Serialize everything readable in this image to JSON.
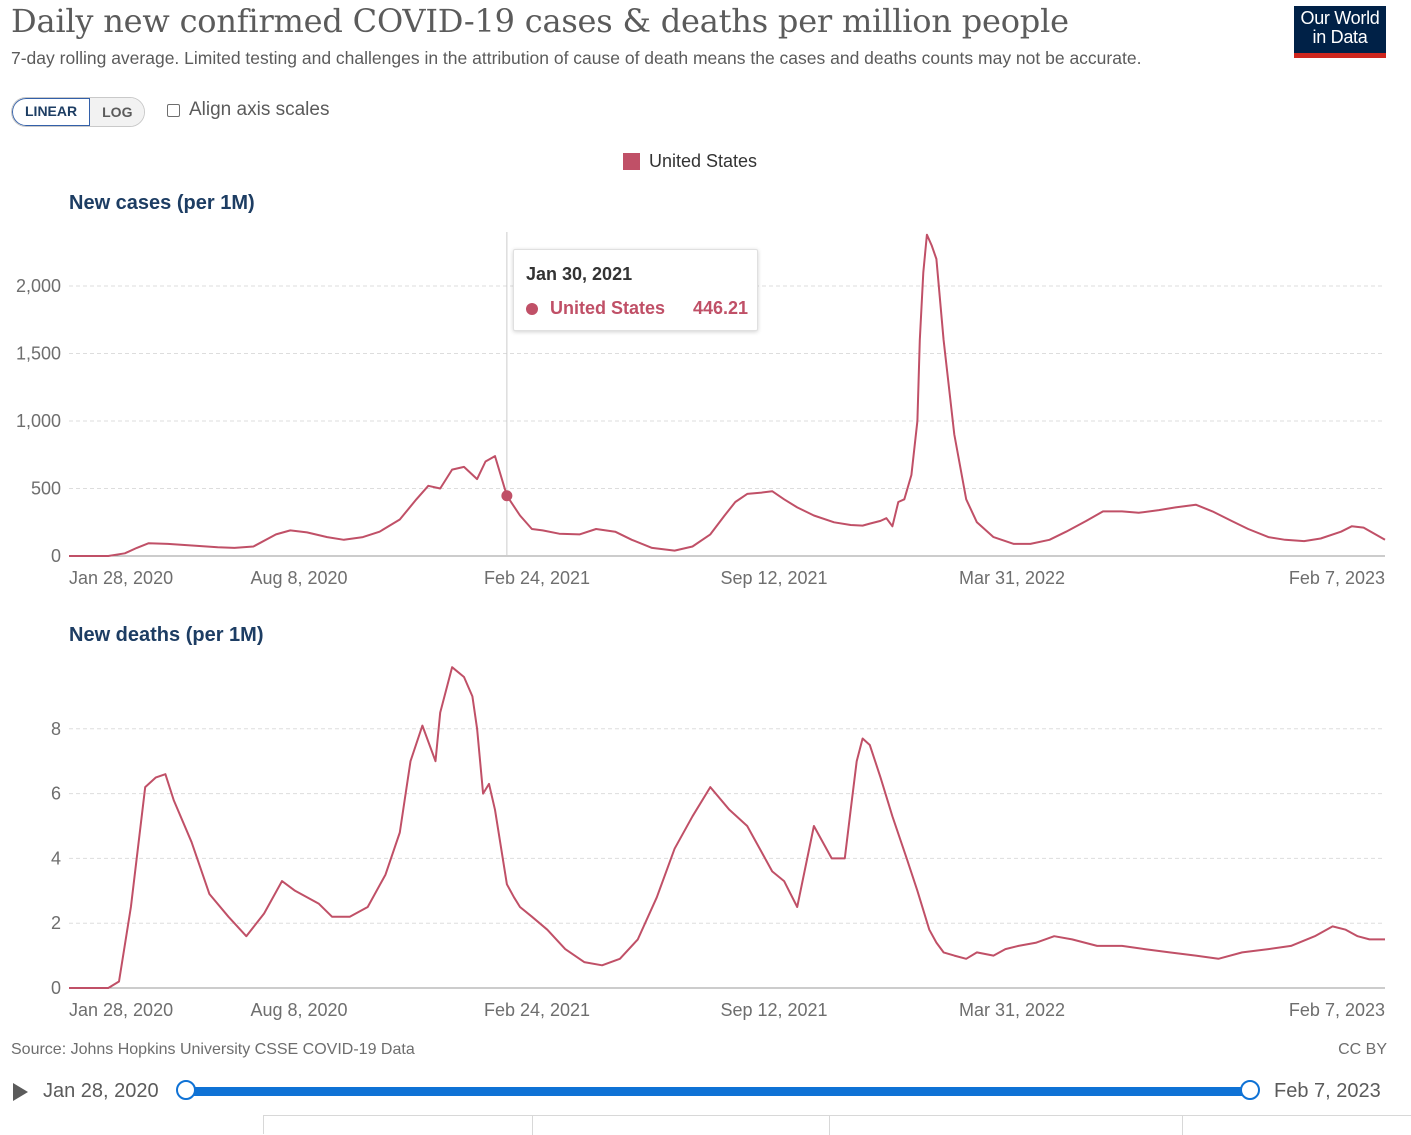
{
  "header": {
    "title": "Daily new confirmed COVID-19 cases & deaths per million people",
    "subtitle": "7-day rolling average. Limited testing and challenges in the attribution of cause of death means the cases and deaths counts may not be accurate.",
    "logo_line1": "Our World",
    "logo_line2": "in Data",
    "logo_colors": {
      "background": "#002147",
      "accent": "#ce261e"
    }
  },
  "controls": {
    "linear_label": "LINEAR",
    "log_label": "LOG",
    "selected_scale": "LINEAR",
    "align_label": "Align axis scales",
    "align_checked": false
  },
  "tooltip": {
    "date": "Jan 30, 2021",
    "entity": "United States",
    "value": "446.21"
  },
  "footer": {
    "source": "Source: Johns Hopkins University CSSE COVID-19 Data",
    "license": "CC BY"
  },
  "timeline": {
    "start_label": "Jan 28, 2020",
    "end_label": "Feb 7, 2023",
    "start_position": 0,
    "end_position": 1
  },
  "chart_data": [
    {
      "type": "line",
      "title": "New cases (per 1M)",
      "legend": [
        "United States"
      ],
      "legend_position": "top-center",
      "color": "#c05067",
      "x_range": [
        "2020-01-28",
        "2023-02-07"
      ],
      "x_ticks": [
        "Jan 28, 2020",
        "Aug 8, 2020",
        "Feb 24, 2021",
        "Sep 12, 2021",
        "Mar 31, 2022",
        "Feb 7, 2023"
      ],
      "y_ticks": [
        "0",
        "500",
        "1,000",
        "1,500",
        "2,000"
      ],
      "y_tick_values": [
        0,
        500,
        1000,
        1500,
        2000
      ],
      "ylim": [
        0,
        2400
      ],
      "grid": true,
      "highlight": {
        "x": "2021-01-30",
        "y": 446.21
      },
      "series": [
        {
          "name": "United States",
          "x": [
            "2020-01-28",
            "2020-03-01",
            "2020-03-15",
            "2020-03-25",
            "2020-04-04",
            "2020-04-20",
            "2020-05-15",
            "2020-06-01",
            "2020-06-15",
            "2020-07-01",
            "2020-07-20",
            "2020-08-01",
            "2020-08-15",
            "2020-09-01",
            "2020-09-15",
            "2020-10-01",
            "2020-10-15",
            "2020-11-01",
            "2020-11-15",
            "2020-11-25",
            "2020-12-05",
            "2020-12-15",
            "2020-12-25",
            "2021-01-05",
            "2021-01-12",
            "2021-01-20",
            "2021-01-30",
            "2021-02-10",
            "2021-02-20",
            "2021-03-01",
            "2021-03-15",
            "2021-04-01",
            "2021-04-15",
            "2021-05-01",
            "2021-05-15",
            "2021-06-01",
            "2021-06-20",
            "2021-07-05",
            "2021-07-20",
            "2021-08-01",
            "2021-08-10",
            "2021-08-20",
            "2021-09-01",
            "2021-09-10",
            "2021-09-20",
            "2021-10-01",
            "2021-10-15",
            "2021-11-01",
            "2021-11-15",
            "2021-11-25",
            "2021-12-01",
            "2021-12-10",
            "2021-12-15",
            "2021-12-20",
            "2021-12-25",
            "2021-12-30",
            "2022-01-05",
            "2022-01-10",
            "2022-01-12",
            "2022-01-15",
            "2022-01-18",
            "2022-01-22",
            "2022-01-26",
            "2022-02-01",
            "2022-02-10",
            "2022-02-20",
            "2022-03-01",
            "2022-03-15",
            "2022-04-01",
            "2022-04-15",
            "2022-05-01",
            "2022-05-15",
            "2022-06-01",
            "2022-06-15",
            "2022-07-01",
            "2022-07-15",
            "2022-08-01",
            "2022-08-15",
            "2022-09-01",
            "2022-09-15",
            "2022-10-01",
            "2022-10-15",
            "2022-11-01",
            "2022-11-15",
            "2022-12-01",
            "2022-12-15",
            "2023-01-01",
            "2023-01-10",
            "2023-01-20",
            "2023-02-07"
          ],
          "y": [
            0,
            0,
            20,
            60,
            95,
            90,
            75,
            65,
            60,
            70,
            160,
            190,
            175,
            140,
            120,
            140,
            180,
            270,
            420,
            520,
            500,
            640,
            660,
            570,
            700,
            740,
            446,
            300,
            200,
            190,
            165,
            160,
            200,
            180,
            120,
            60,
            40,
            70,
            160,
            300,
            400,
            460,
            470,
            480,
            420,
            360,
            300,
            250,
            230,
            225,
            240,
            260,
            280,
            220,
            400,
            420,
            600,
            1000,
            1600,
            2100,
            2380,
            2300,
            2200,
            1600,
            900,
            420,
            250,
            140,
            90,
            90,
            120,
            180,
            260,
            330,
            330,
            320,
            340,
            360,
            380,
            330,
            260,
            200,
            140,
            120,
            110,
            130,
            180,
            220,
            210,
            120
          ]
        }
      ]
    },
    {
      "type": "line",
      "title": "New deaths (per 1M)",
      "legend": [
        "United States"
      ],
      "color": "#c05067",
      "x_range": [
        "2020-01-28",
        "2023-02-07"
      ],
      "x_ticks": [
        "Jan 28, 2020",
        "Aug 8, 2020",
        "Feb 24, 2021",
        "Sep 12, 2021",
        "Mar 31, 2022",
        "Feb 7, 2023"
      ],
      "y_ticks": [
        "0",
        "2",
        "4",
        "6",
        "8"
      ],
      "y_tick_values": [
        0,
        2,
        4,
        6,
        8
      ],
      "ylim": [
        0,
        10
      ],
      "grid": true,
      "series": [
        {
          "name": "United States",
          "x": [
            "2020-01-28",
            "2020-03-01",
            "2020-03-10",
            "2020-03-20",
            "2020-04-01",
            "2020-04-10",
            "2020-04-18",
            "2020-04-25",
            "2020-05-10",
            "2020-05-25",
            "2020-06-10",
            "2020-06-25",
            "2020-07-10",
            "2020-07-25",
            "2020-08-05",
            "2020-08-15",
            "2020-08-25",
            "2020-09-05",
            "2020-09-20",
            "2020-10-05",
            "2020-10-20",
            "2020-11-01",
            "2020-11-10",
            "2020-11-20",
            "2020-12-01",
            "2020-12-05",
            "2020-12-15",
            "2020-12-25",
            "2021-01-01",
            "2021-01-05",
            "2021-01-10",
            "2021-01-15",
            "2021-01-20",
            "2021-01-30",
            "2021-02-05",
            "2021-02-10",
            "2021-02-20",
            "2021-03-05",
            "2021-03-20",
            "2021-04-05",
            "2021-04-20",
            "2021-05-05",
            "2021-05-20",
            "2021-06-05",
            "2021-06-20",
            "2021-07-05",
            "2021-07-20",
            "2021-08-05",
            "2021-08-20",
            "2021-09-01",
            "2021-09-10",
            "2021-09-20",
            "2021-10-01",
            "2021-10-15",
            "2021-10-30",
            "2021-11-10",
            "2021-11-15",
            "2021-11-20",
            "2021-11-25",
            "2021-12-01",
            "2021-12-10",
            "2021-12-20",
            "2022-01-01",
            "2022-01-10",
            "2022-01-20",
            "2022-01-26",
            "2022-02-01",
            "2022-02-10",
            "2022-02-20",
            "2022-03-01",
            "2022-03-15",
            "2022-03-25",
            "2022-04-05",
            "2022-04-20",
            "2022-05-05",
            "2022-05-20",
            "2022-06-10",
            "2022-07-01",
            "2022-07-20",
            "2022-08-10",
            "2022-09-01",
            "2022-09-20",
            "2022-10-10",
            "2022-11-01",
            "2022-11-20",
            "2022-12-10",
            "2022-12-25",
            "2023-01-05",
            "2023-01-15",
            "2023-01-25",
            "2023-02-07"
          ],
          "y": [
            0,
            0,
            0.2,
            2.5,
            6.2,
            6.5,
            6.6,
            5.8,
            4.5,
            2.9,
            2.2,
            1.6,
            2.3,
            3.3,
            3.0,
            2.8,
            2.6,
            2.2,
            2.2,
            2.5,
            3.5,
            4.8,
            7.0,
            8.1,
            7.0,
            8.5,
            9.9,
            9.6,
            9.0,
            8.0,
            6.0,
            6.3,
            5.5,
            3.2,
            2.8,
            2.5,
            2.2,
            1.8,
            1.2,
            0.8,
            0.7,
            0.9,
            1.5,
            2.8,
            4.3,
            5.3,
            6.2,
            5.5,
            5.0,
            4.2,
            3.6,
            3.3,
            2.5,
            5.0,
            4.0,
            4.0,
            5.5,
            7.0,
            7.7,
            7.5,
            6.5,
            5.3,
            4.0,
            3.0,
            1.8,
            1.4,
            1.1,
            1.0,
            0.9,
            1.1,
            1.0,
            1.2,
            1.3,
            1.4,
            1.6,
            1.5,
            1.3,
            1.3,
            1.2,
            1.1,
            1.0,
            0.9,
            1.1,
            1.2,
            1.3,
            1.6,
            1.9,
            1.8,
            1.6,
            1.5,
            1.5
          ]
        }
      ]
    }
  ]
}
